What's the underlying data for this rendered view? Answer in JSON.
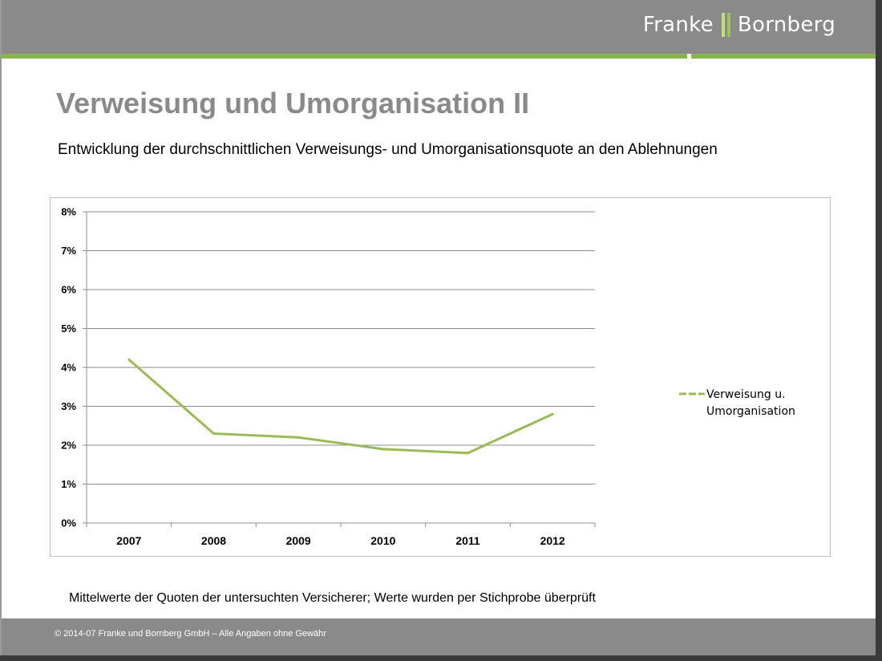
{
  "header": {
    "brand_left": "Franke",
    "brand_right": "Bornberg",
    "brand_color": "#8ab54c"
  },
  "slide": {
    "title": "Verweisung und Umorganisation II",
    "subtitle": "Entwicklung der durchschnittlichen Verweisungs- und Umorganisationsquote an den Ablehnungen",
    "note": "Mittelwerte der Quoten der untersuchten Versicherer; Werte wurden per Stichprobe überprüft"
  },
  "footer": {
    "text": "© 2014-07 Franke und Bornberg GmbH – Alle Angaben ohne Gewähr"
  },
  "chart_data": {
    "type": "line",
    "categories": [
      "2007",
      "2008",
      "2009",
      "2010",
      "2011",
      "2012"
    ],
    "series": [
      {
        "name": "Verweisung u. Umorganisation",
        "name_lines": [
          "Verweisung u.",
          "Umorganisation"
        ],
        "values": [
          4.2,
          2.3,
          2.2,
          1.9,
          1.8,
          2.8
        ],
        "color": "#9bbb59"
      }
    ],
    "ylim": [
      0,
      8
    ],
    "yticks": [
      0,
      1,
      2,
      3,
      4,
      5,
      6,
      7,
      8
    ],
    "ytick_labels": [
      "0%",
      "1%",
      "2%",
      "3%",
      "4%",
      "5%",
      "6%",
      "7%",
      "8%"
    ],
    "grid": true,
    "legend": "right",
    "title": "",
    "xlabel": "",
    "ylabel": ""
  }
}
